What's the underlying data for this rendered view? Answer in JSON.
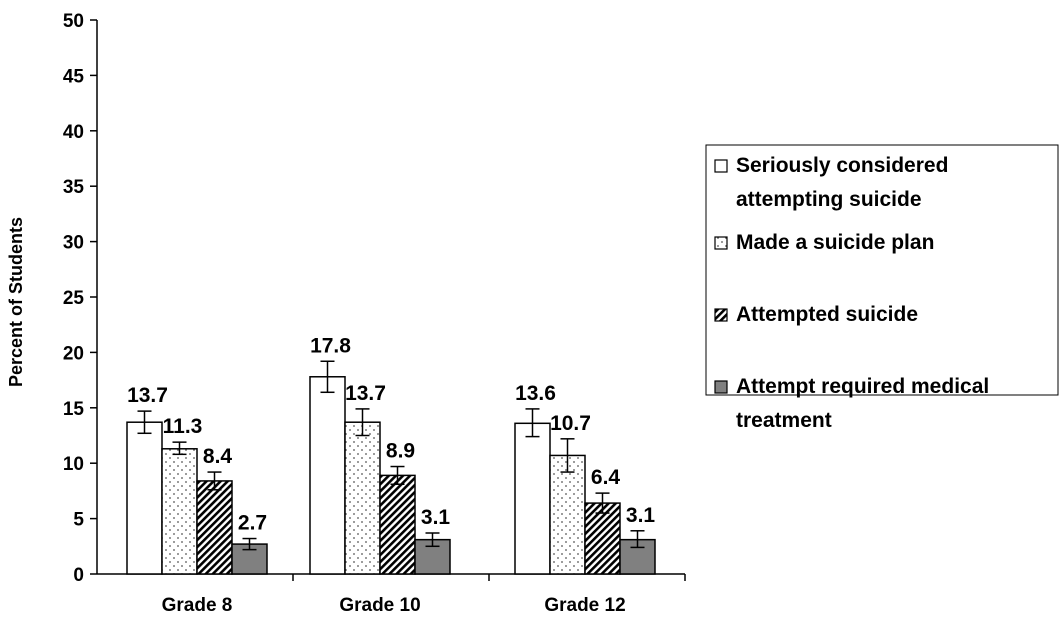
{
  "chart_data": {
    "type": "bar",
    "title": "",
    "xlabel": "",
    "ylabel": "Percent of Students",
    "ylim": [
      0,
      50
    ],
    "yticks": [
      0,
      5,
      10,
      15,
      20,
      25,
      30,
      35,
      40,
      45,
      50
    ],
    "grid": false,
    "legend_position": "right",
    "categories": [
      "Grade 8",
      "Grade 10",
      "Grade 12"
    ],
    "series": [
      {
        "name": "Seriously considered attempting suicide",
        "legend_lines": [
          "Seriously considered",
          "attempting suicide"
        ],
        "pattern": "white",
        "values": [
          13.7,
          17.8,
          13.6
        ],
        "value_labels": [
          "13.7",
          "17.8",
          "13.6"
        ],
        "error": [
          [
            12.7,
            14.7
          ],
          [
            16.4,
            19.2
          ],
          [
            12.4,
            14.9
          ]
        ]
      },
      {
        "name": "Made a suicide plan",
        "legend_lines": [
          "Made a suicide plan"
        ],
        "pattern": "dots",
        "values": [
          11.3,
          13.7,
          10.7
        ],
        "value_labels": [
          "11.3",
          "13.7",
          "10.7"
        ],
        "error": [
          [
            10.8,
            11.9
          ],
          [
            12.5,
            14.9
          ],
          [
            9.2,
            12.2
          ]
        ]
      },
      {
        "name": "Attempted suicide",
        "legend_lines": [
          "Attempted suicide"
        ],
        "pattern": "hatch",
        "values": [
          8.4,
          8.9,
          6.4
        ],
        "value_labels": [
          "8.4",
          "8.9",
          "6.4"
        ],
        "error": [
          [
            7.6,
            9.2
          ],
          [
            8.1,
            9.7
          ],
          [
            5.5,
            7.3
          ]
        ]
      },
      {
        "name": "Attempt required medical treatment",
        "legend_lines": [
          "Attempt required medical",
          "treatment"
        ],
        "pattern": "gray",
        "values": [
          2.7,
          3.1,
          3.1
        ],
        "value_labels": [
          "2.7",
          "3.1",
          "3.1"
        ],
        "error": [
          [
            2.2,
            3.2
          ],
          [
            2.5,
            3.7
          ],
          [
            2.4,
            3.9
          ]
        ]
      }
    ],
    "colors": {
      "bar_white": "#ffffff",
      "bar_gray": "#808080",
      "line": "#000000"
    }
  }
}
